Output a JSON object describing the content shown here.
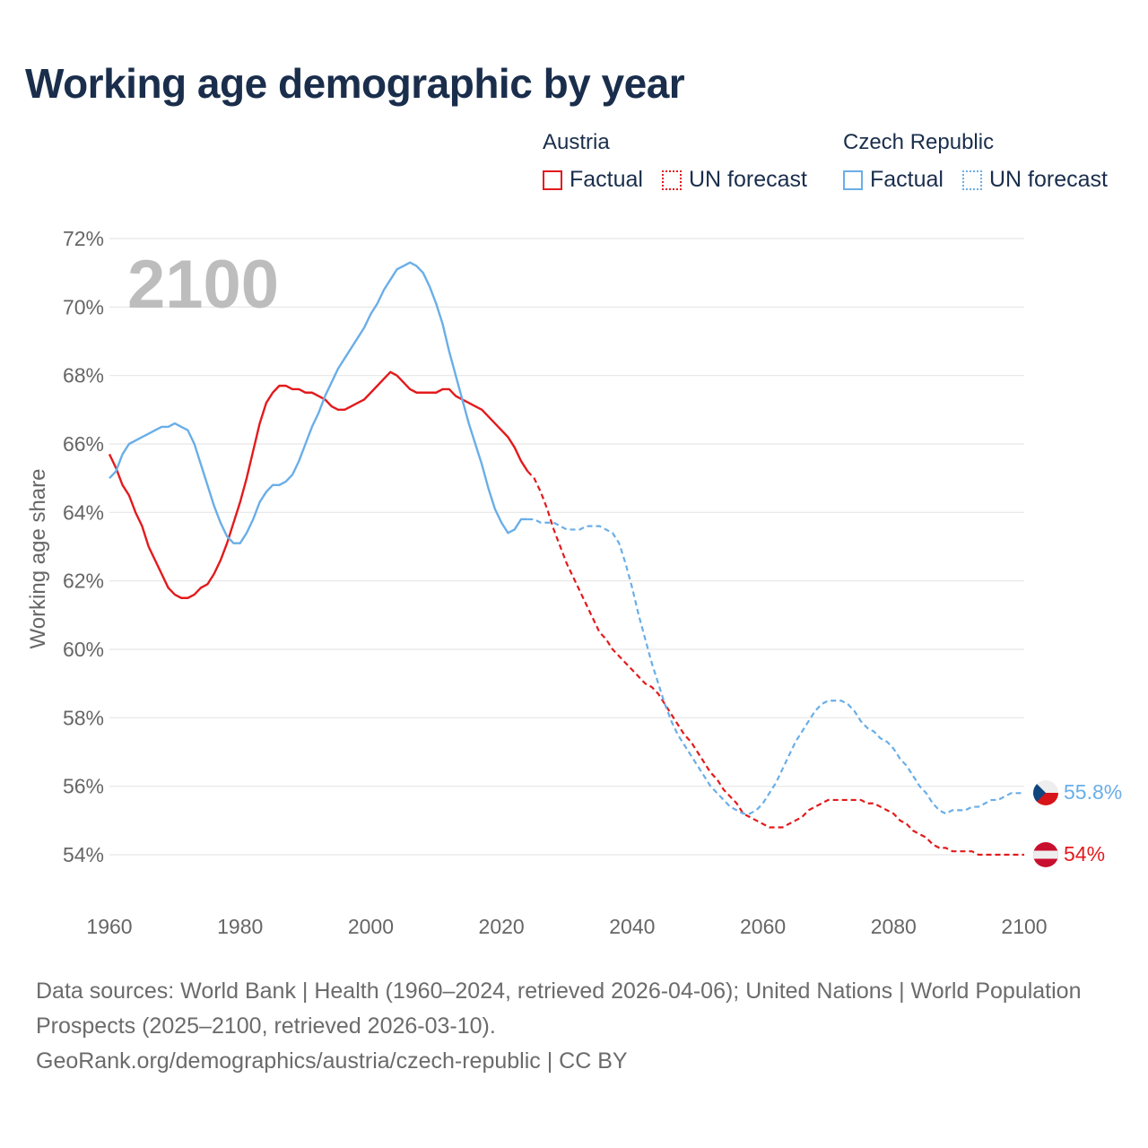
{
  "title": "Working age demographic by year",
  "legend": {
    "austria_title": "Austria",
    "czech_title": "Czech Republic",
    "factual": "Factual",
    "forecast": "UN forecast"
  },
  "footer": {
    "line1": "Data sources: World Bank | Health (1960–2024, retrieved 2026-04-06); United Nations | World Population Prospects (2025–2100, retrieved 2026-03-10).",
    "line2": "GeoRank.org/demographics/austria/czech-republic | CC BY"
  },
  "colors": {
    "austria": "#e31a1c",
    "czech": "#6aaee8",
    "grid": "#e6e6e6"
  },
  "chart_data": {
    "type": "line",
    "title": "Working age demographic by year",
    "ylabel": "Working age share",
    "xlabel": "",
    "year_label": "2100",
    "xlim": [
      1960,
      2100
    ],
    "ylim": [
      53,
      72.5
    ],
    "x_ticks": [
      1960,
      1980,
      2000,
      2020,
      2040,
      2060,
      2080,
      2100
    ],
    "y_ticks": [
      54,
      56,
      58,
      60,
      62,
      64,
      66,
      68,
      70,
      72
    ],
    "y_tick_labels": [
      "54%",
      "56%",
      "58%",
      "60%",
      "62%",
      "64%",
      "66%",
      "68%",
      "70%",
      "72%"
    ],
    "factual_end_year": 2024,
    "series": [
      {
        "name": "Austria",
        "end_label": "54%",
        "points": [
          [
            1960,
            65.7
          ],
          [
            1961,
            65.3
          ],
          [
            1962,
            64.8
          ],
          [
            1963,
            64.5
          ],
          [
            1964,
            64.0
          ],
          [
            1965,
            63.6
          ],
          [
            1966,
            63.0
          ],
          [
            1967,
            62.6
          ],
          [
            1968,
            62.2
          ],
          [
            1969,
            61.8
          ],
          [
            1970,
            61.6
          ],
          [
            1971,
            61.5
          ],
          [
            1972,
            61.5
          ],
          [
            1973,
            61.6
          ],
          [
            1974,
            61.8
          ],
          [
            1975,
            61.9
          ],
          [
            1976,
            62.2
          ],
          [
            1977,
            62.6
          ],
          [
            1978,
            63.1
          ],
          [
            1979,
            63.7
          ],
          [
            1980,
            64.3
          ],
          [
            1981,
            65.0
          ],
          [
            1982,
            65.8
          ],
          [
            1983,
            66.6
          ],
          [
            1984,
            67.2
          ],
          [
            1985,
            67.5
          ],
          [
            1986,
            67.7
          ],
          [
            1987,
            67.7
          ],
          [
            1988,
            67.6
          ],
          [
            1989,
            67.6
          ],
          [
            1990,
            67.5
          ],
          [
            1991,
            67.5
          ],
          [
            1992,
            67.4
          ],
          [
            1993,
            67.3
          ],
          [
            1994,
            67.1
          ],
          [
            1995,
            67.0
          ],
          [
            1996,
            67.0
          ],
          [
            1997,
            67.1
          ],
          [
            1998,
            67.2
          ],
          [
            1999,
            67.3
          ],
          [
            2000,
            67.5
          ],
          [
            2001,
            67.7
          ],
          [
            2002,
            67.9
          ],
          [
            2003,
            68.1
          ],
          [
            2004,
            68.0
          ],
          [
            2005,
            67.8
          ],
          [
            2006,
            67.6
          ],
          [
            2007,
            67.5
          ],
          [
            2008,
            67.5
          ],
          [
            2009,
            67.5
          ],
          [
            2010,
            67.5
          ],
          [
            2011,
            67.6
          ],
          [
            2012,
            67.6
          ],
          [
            2013,
            67.4
          ],
          [
            2014,
            67.3
          ],
          [
            2015,
            67.2
          ],
          [
            2016,
            67.1
          ],
          [
            2017,
            67.0
          ],
          [
            2018,
            66.8
          ],
          [
            2019,
            66.6
          ],
          [
            2020,
            66.4
          ],
          [
            2021,
            66.2
          ],
          [
            2022,
            65.9
          ],
          [
            2023,
            65.5
          ],
          [
            2024,
            65.2
          ],
          [
            2025,
            65.0
          ],
          [
            2026,
            64.6
          ],
          [
            2027,
            64.1
          ],
          [
            2028,
            63.5
          ],
          [
            2029,
            63.0
          ],
          [
            2030,
            62.5
          ],
          [
            2031,
            62.1
          ],
          [
            2032,
            61.7
          ],
          [
            2033,
            61.3
          ],
          [
            2034,
            60.9
          ],
          [
            2035,
            60.5
          ],
          [
            2036,
            60.3
          ],
          [
            2037,
            60.0
          ],
          [
            2038,
            59.8
          ],
          [
            2039,
            59.6
          ],
          [
            2040,
            59.4
          ],
          [
            2041,
            59.2
          ],
          [
            2042,
            59.0
          ],
          [
            2043,
            58.9
          ],
          [
            2044,
            58.7
          ],
          [
            2045,
            58.4
          ],
          [
            2046,
            58.1
          ],
          [
            2047,
            57.8
          ],
          [
            2048,
            57.5
          ],
          [
            2049,
            57.3
          ],
          [
            2050,
            57.0
          ],
          [
            2051,
            56.7
          ],
          [
            2052,
            56.4
          ],
          [
            2053,
            56.2
          ],
          [
            2054,
            55.9
          ],
          [
            2055,
            55.7
          ],
          [
            2056,
            55.5
          ],
          [
            2057,
            55.2
          ],
          [
            2058,
            55.1
          ],
          [
            2059,
            55.0
          ],
          [
            2060,
            54.9
          ],
          [
            2061,
            54.8
          ],
          [
            2062,
            54.8
          ],
          [
            2063,
            54.8
          ],
          [
            2064,
            54.9
          ],
          [
            2065,
            55.0
          ],
          [
            2066,
            55.1
          ],
          [
            2067,
            55.3
          ],
          [
            2068,
            55.4
          ],
          [
            2069,
            55.5
          ],
          [
            2070,
            55.6
          ],
          [
            2071,
            55.6
          ],
          [
            2072,
            55.6
          ],
          [
            2073,
            55.6
          ],
          [
            2074,
            55.6
          ],
          [
            2075,
            55.6
          ],
          [
            2076,
            55.5
          ],
          [
            2077,
            55.5
          ],
          [
            2078,
            55.4
          ],
          [
            2079,
            55.3
          ],
          [
            2080,
            55.2
          ],
          [
            2081,
            55.0
          ],
          [
            2082,
            54.9
          ],
          [
            2083,
            54.7
          ],
          [
            2084,
            54.6
          ],
          [
            2085,
            54.5
          ],
          [
            2086,
            54.3
          ],
          [
            2087,
            54.2
          ],
          [
            2088,
            54.2
          ],
          [
            2089,
            54.1
          ],
          [
            2090,
            54.1
          ],
          [
            2091,
            54.1
          ],
          [
            2092,
            54.1
          ],
          [
            2093,
            54.0
          ],
          [
            2094,
            54.0
          ],
          [
            2095,
            54.0
          ],
          [
            2096,
            54.0
          ],
          [
            2097,
            54.0
          ],
          [
            2098,
            54.0
          ],
          [
            2099,
            54.0
          ],
          [
            2100,
            54.0
          ]
        ]
      },
      {
        "name": "Czech Republic",
        "end_label": "55.8%",
        "points": [
          [
            1960,
            65.0
          ],
          [
            1961,
            65.2
          ],
          [
            1962,
            65.7
          ],
          [
            1963,
            66.0
          ],
          [
            1964,
            66.1
          ],
          [
            1965,
            66.2
          ],
          [
            1966,
            66.3
          ],
          [
            1967,
            66.4
          ],
          [
            1968,
            66.5
          ],
          [
            1969,
            66.5
          ],
          [
            1970,
            66.6
          ],
          [
            1971,
            66.5
          ],
          [
            1972,
            66.4
          ],
          [
            1973,
            66.0
          ],
          [
            1974,
            65.4
          ],
          [
            1975,
            64.8
          ],
          [
            1976,
            64.2
          ],
          [
            1977,
            63.7
          ],
          [
            1978,
            63.3
          ],
          [
            1979,
            63.1
          ],
          [
            1980,
            63.1
          ],
          [
            1981,
            63.4
          ],
          [
            1982,
            63.8
          ],
          [
            1983,
            64.3
          ],
          [
            1984,
            64.6
          ],
          [
            1985,
            64.8
          ],
          [
            1986,
            64.8
          ],
          [
            1987,
            64.9
          ],
          [
            1988,
            65.1
          ],
          [
            1989,
            65.5
          ],
          [
            1990,
            66.0
          ],
          [
            1991,
            66.5
          ],
          [
            1992,
            66.9
          ],
          [
            1993,
            67.4
          ],
          [
            1994,
            67.8
          ],
          [
            1995,
            68.2
          ],
          [
            1996,
            68.5
          ],
          [
            1997,
            68.8
          ],
          [
            1998,
            69.1
          ],
          [
            1999,
            69.4
          ],
          [
            2000,
            69.8
          ],
          [
            2001,
            70.1
          ],
          [
            2002,
            70.5
          ],
          [
            2003,
            70.8
          ],
          [
            2004,
            71.1
          ],
          [
            2005,
            71.2
          ],
          [
            2006,
            71.3
          ],
          [
            2007,
            71.2
          ],
          [
            2008,
            71.0
          ],
          [
            2009,
            70.6
          ],
          [
            2010,
            70.1
          ],
          [
            2011,
            69.5
          ],
          [
            2012,
            68.7
          ],
          [
            2013,
            68.0
          ],
          [
            2014,
            67.3
          ],
          [
            2015,
            66.6
          ],
          [
            2016,
            66.0
          ],
          [
            2017,
            65.4
          ],
          [
            2018,
            64.7
          ],
          [
            2019,
            64.1
          ],
          [
            2020,
            63.7
          ],
          [
            2021,
            63.4
          ],
          [
            2022,
            63.5
          ],
          [
            2023,
            63.8
          ],
          [
            2024,
            63.8
          ],
          [
            2025,
            63.8
          ],
          [
            2026,
            63.7
          ],
          [
            2027,
            63.7
          ],
          [
            2028,
            63.7
          ],
          [
            2029,
            63.6
          ],
          [
            2030,
            63.5
          ],
          [
            2031,
            63.5
          ],
          [
            2032,
            63.5
          ],
          [
            2033,
            63.6
          ],
          [
            2034,
            63.6
          ],
          [
            2035,
            63.6
          ],
          [
            2036,
            63.5
          ],
          [
            2037,
            63.4
          ],
          [
            2038,
            63.1
          ],
          [
            2039,
            62.5
          ],
          [
            2040,
            61.8
          ],
          [
            2041,
            61.0
          ],
          [
            2042,
            60.3
          ],
          [
            2043,
            59.6
          ],
          [
            2044,
            59.0
          ],
          [
            2045,
            58.4
          ],
          [
            2046,
            57.9
          ],
          [
            2047,
            57.5
          ],
          [
            2048,
            57.2
          ],
          [
            2049,
            56.9
          ],
          [
            2050,
            56.6
          ],
          [
            2051,
            56.3
          ],
          [
            2052,
            56.0
          ],
          [
            2053,
            55.8
          ],
          [
            2054,
            55.6
          ],
          [
            2055,
            55.4
          ],
          [
            2056,
            55.3
          ],
          [
            2057,
            55.2
          ],
          [
            2058,
            55.2
          ],
          [
            2059,
            55.3
          ],
          [
            2060,
            55.5
          ],
          [
            2061,
            55.8
          ],
          [
            2062,
            56.1
          ],
          [
            2063,
            56.5
          ],
          [
            2064,
            56.9
          ],
          [
            2065,
            57.3
          ],
          [
            2066,
            57.6
          ],
          [
            2067,
            57.9
          ],
          [
            2068,
            58.2
          ],
          [
            2069,
            58.4
          ],
          [
            2070,
            58.5
          ],
          [
            2071,
            58.5
          ],
          [
            2072,
            58.5
          ],
          [
            2073,
            58.4
          ],
          [
            2074,
            58.2
          ],
          [
            2075,
            57.9
          ],
          [
            2076,
            57.7
          ],
          [
            2077,
            57.6
          ],
          [
            2078,
            57.4
          ],
          [
            2079,
            57.3
          ],
          [
            2080,
            57.1
          ],
          [
            2081,
            56.8
          ],
          [
            2082,
            56.6
          ],
          [
            2083,
            56.3
          ],
          [
            2084,
            56.0
          ],
          [
            2085,
            55.8
          ],
          [
            2086,
            55.5
          ],
          [
            2087,
            55.3
          ],
          [
            2088,
            55.2
          ],
          [
            2089,
            55.3
          ],
          [
            2090,
            55.3
          ],
          [
            2091,
            55.3
          ],
          [
            2092,
            55.4
          ],
          [
            2093,
            55.4
          ],
          [
            2094,
            55.5
          ],
          [
            2095,
            55.6
          ],
          [
            2096,
            55.6
          ],
          [
            2097,
            55.7
          ],
          [
            2098,
            55.8
          ],
          [
            2099,
            55.8
          ],
          [
            2100,
            55.8
          ]
        ]
      }
    ]
  }
}
